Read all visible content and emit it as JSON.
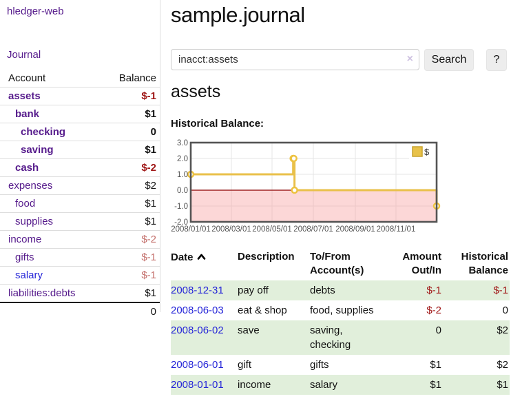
{
  "app": {
    "brand": "hledger-web",
    "nav_journal": "Journal"
  },
  "colors": {
    "accent_purple": "#551a8b",
    "link_blue": "#2626d8",
    "negative": "#a01818",
    "negative_muted": "#c4706c",
    "row_green": "#e1efdb",
    "chart_line": "#edc240",
    "chart_negative_fill": "#f9dada",
    "chart_zero_line": "#8b0000"
  },
  "sidebar": {
    "headers": [
      "Account",
      "Balance"
    ],
    "rows": [
      {
        "account": "assets",
        "balance": "$-1"
      },
      {
        "account": "bank",
        "balance": "$1"
      },
      {
        "account": "checking",
        "balance": "0"
      },
      {
        "account": "saving",
        "balance": "$1"
      },
      {
        "account": "cash",
        "balance": "$-2"
      },
      {
        "account": "expenses",
        "balance": "$2"
      },
      {
        "account": "food",
        "balance": "$1"
      },
      {
        "account": "supplies",
        "balance": "$1"
      },
      {
        "account": "income",
        "balance": "$-2"
      },
      {
        "account": "gifts",
        "balance": "$-1"
      },
      {
        "account": "salary",
        "balance": "$-1"
      },
      {
        "account": "liabilities:debts",
        "balance": "$1"
      }
    ],
    "total": "0"
  },
  "header": {
    "title": "sample.journal"
  },
  "search": {
    "value": "inacct:assets",
    "clear_icon": "×",
    "button_label": "Search",
    "help_label": "?"
  },
  "account_page": {
    "title": "assets",
    "chart_label": "Historical Balance:"
  },
  "chart_data": {
    "type": "line",
    "style": "step",
    "series": [
      {
        "name": "$",
        "points": [
          {
            "date": "2008/01/01",
            "day": 0,
            "value": 1
          },
          {
            "date": "2008/06/01",
            "day": 152,
            "value": 2
          },
          {
            "date": "2008/06/02",
            "day": 153,
            "value": 2
          },
          {
            "date": "2008/06/03",
            "day": 154,
            "value": 0
          },
          {
            "date": "2008/12/31",
            "day": 365,
            "value": -1
          }
        ]
      }
    ],
    "ylim": [
      -2,
      3
    ],
    "yticks": [
      "3.0",
      "2.0",
      "1.0",
      "0.0",
      "-1.0",
      "-2.0"
    ],
    "xticks": [
      "2008/01/01",
      "2008/03/01",
      "2008/05/01",
      "2008/07/01",
      "2008/09/01",
      "2008/11/01"
    ],
    "legend": {
      "label": "$",
      "position": "top-right"
    },
    "grid": true,
    "negative_region_shaded": true
  },
  "register": {
    "headers": {
      "date": "Date",
      "description": "Description",
      "tofrom": "To/From Account(s)",
      "amount": "Amount Out/In",
      "balance": "Historical Balance"
    },
    "rows": [
      {
        "date": "2008-12-31",
        "description": "pay off",
        "tofrom": "debts",
        "amount": "$-1",
        "balance": "$-1"
      },
      {
        "date": "2008-06-03",
        "description": "eat & shop",
        "tofrom": "food, supplies",
        "amount": "$-2",
        "balance": "0"
      },
      {
        "date": "2008-06-02",
        "description": "save",
        "tofrom": "saving, checking",
        "amount": "0",
        "balance": "$2"
      },
      {
        "date": "2008-06-01",
        "description": "gift",
        "tofrom": "gifts",
        "amount": "$1",
        "balance": "$2"
      },
      {
        "date": "2008-01-01",
        "description": "income",
        "tofrom": "salary",
        "amount": "$1",
        "balance": "$1"
      }
    ]
  }
}
